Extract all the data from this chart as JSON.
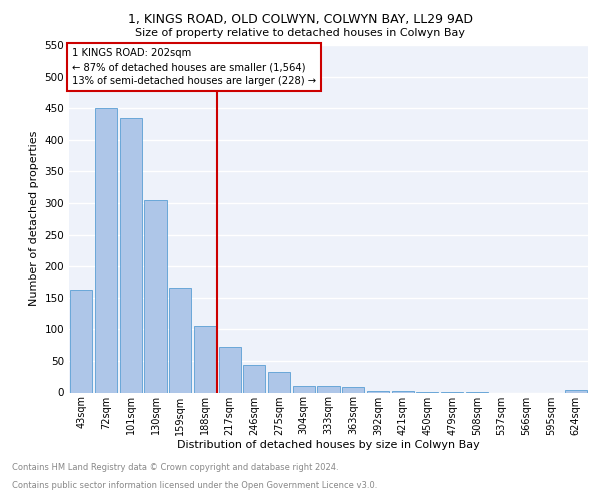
{
  "title1": "1, KINGS ROAD, OLD COLWYN, COLWYN BAY, LL29 9AD",
  "title2": "Size of property relative to detached houses in Colwyn Bay",
  "xlabel": "Distribution of detached houses by size in Colwyn Bay",
  "ylabel": "Number of detached properties",
  "footnote1": "Contains HM Land Registry data © Crown copyright and database right 2024.",
  "footnote2": "Contains public sector information licensed under the Open Government Licence v3.0.",
  "annotation_line1": "1 KINGS ROAD: 202sqm",
  "annotation_line2": "← 87% of detached houses are smaller (1,564)",
  "annotation_line3": "13% of semi-detached houses are larger (228) →",
  "bar_labels": [
    "43sqm",
    "72sqm",
    "101sqm",
    "130sqm",
    "159sqm",
    "188sqm",
    "217sqm",
    "246sqm",
    "275sqm",
    "304sqm",
    "333sqm",
    "363sqm",
    "392sqm",
    "421sqm",
    "450sqm",
    "479sqm",
    "508sqm",
    "537sqm",
    "566sqm",
    "595sqm",
    "624sqm"
  ],
  "bar_values": [
    163,
    450,
    435,
    305,
    165,
    105,
    72,
    43,
    32,
    11,
    10,
    8,
    3,
    2,
    1,
    1,
    1,
    0,
    0,
    0,
    4
  ],
  "bar_color": "#aec6e8",
  "bar_edge_color": "#5a9fd4",
  "vline_color": "#cc0000",
  "annotation_box_color": "#cc0000",
  "background_color": "#eef2fa",
  "ylim": [
    0,
    550
  ],
  "yticks": [
    0,
    50,
    100,
    150,
    200,
    250,
    300,
    350,
    400,
    450,
    500,
    550
  ]
}
